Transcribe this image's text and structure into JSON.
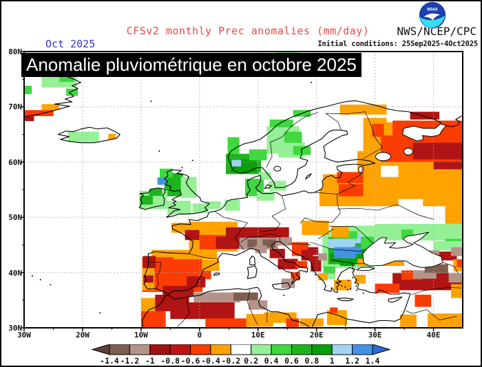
{
  "header": {
    "title": "CFSv2 monthly Prec anomalies (mm/day)",
    "title_color": "#ef4444",
    "date_label": "Oct 2025",
    "date_color": "#3333cc",
    "agency": "NWS/NCEP/CPC",
    "init_conditions": "Initial conditions: 25Sep2025-4Oct2025",
    "logo": "noaa-logo"
  },
  "banner": {
    "text": "Anomalie pluviométrique en octobre 2025",
    "bg": "#000000",
    "fg": "#ffffff"
  },
  "map": {
    "bounds": {
      "lon_min": -30,
      "lon_max": 45,
      "lat_min": 30,
      "lat_max": 80
    },
    "lat_ticks": [
      {
        "label": "80N",
        "v": 80
      },
      {
        "label": "70N",
        "v": 70
      },
      {
        "label": "60N",
        "v": 60
      },
      {
        "label": "50N",
        "v": 50
      },
      {
        "label": "40N",
        "v": 40
      },
      {
        "label": "30N",
        "v": 30
      }
    ],
    "lon_ticks": [
      {
        "label": "30W",
        "v": -30
      },
      {
        "label": "20W",
        "v": -20
      },
      {
        "label": "10W",
        "v": -10
      },
      {
        "label": "0",
        "v": 0
      },
      {
        "label": "10E",
        "v": 10
      },
      {
        "label": "20E",
        "v": 20
      },
      {
        "label": "30E",
        "v": 30
      },
      {
        "label": "40E",
        "v": 40
      }
    ],
    "grid_lats": [
      40,
      50,
      60,
      70
    ],
    "grid_lons": [
      -20,
      -10,
      0,
      10,
      20,
      30,
      40
    ],
    "palette": {
      "o": "#ffa300",
      "r": "#fa3c00",
      "d": "#b01414",
      "t": "#b4948a",
      "w": "#7e5e50",
      "g1": "#96f096",
      "g2": "#3fd83f",
      "g3": "#1fb41f",
      "g4": "#0a9e0a",
      "b1": "#a2d4f2",
      "b2": "#4492e2",
      "wh": "#ffffff"
    },
    "cells": [
      [
        -27,
        73.5,
        6,
        2.5,
        "g1"
      ],
      [
        -24,
        74.5,
        2.5,
        1.5,
        "g2"
      ],
      [
        -30,
        72.3,
        1.3,
        1.5,
        "g2"
      ],
      [
        -22.8,
        72,
        2,
        1.3,
        "g2"
      ],
      [
        -27,
        69.4,
        3,
        1.1,
        "o"
      ],
      [
        -30,
        68.3,
        5,
        1.1,
        "r"
      ],
      [
        -30,
        67.4,
        1.7,
        0.9,
        "d"
      ],
      [
        -22.5,
        63.6,
        5.3,
        1.9,
        "g1"
      ],
      [
        -15.6,
        64.1,
        1.3,
        1,
        "o"
      ],
      [
        13,
        79,
        4,
        1,
        "g1"
      ],
      [
        21,
        76.6,
        6,
        2.2,
        "g1"
      ],
      [
        21.5,
        77.3,
        3,
        1.4,
        "g2"
      ],
      [
        24,
        68.6,
        8,
        1.8,
        "o"
      ],
      [
        28,
        62,
        4,
        6,
        "o"
      ],
      [
        27,
        57.8,
        18,
        4.2,
        "o"
      ],
      [
        30,
        62,
        15,
        5.2,
        "o"
      ],
      [
        20.5,
        52,
        9.5,
        5.8,
        "o"
      ],
      [
        30,
        52,
        15,
        5.8,
        "o"
      ],
      [
        34,
        50,
        4.2,
        3.3,
        "wh"
      ],
      [
        31,
        57.3,
        3,
        2,
        "wh"
      ],
      [
        19.8,
        55.2,
        1.3,
        2.8,
        "wh"
      ],
      [
        42,
        48.8,
        3,
        3.2,
        "o"
      ],
      [
        33,
        64.8,
        12,
        2.7,
        "r"
      ],
      [
        31,
        60,
        14,
        4.8,
        "r"
      ],
      [
        29.5,
        64.6,
        2,
        2.3,
        "r"
      ],
      [
        36.5,
        60.5,
        8.5,
        3,
        "d"
      ],
      [
        40,
        58.7,
        5,
        1.4,
        "d"
      ],
      [
        36,
        67.7,
        5,
        1.4,
        "d"
      ],
      [
        23.5,
        56.2,
        4.5,
        2,
        "r"
      ],
      [
        23.8,
        53.8,
        4.2,
        2.2,
        "r"
      ],
      [
        11.5,
        61.5,
        5.5,
        5,
        "g1"
      ],
      [
        13.5,
        60.8,
        4.5,
        2.8,
        "g1"
      ],
      [
        14.5,
        63.5,
        3,
        2,
        "g2"
      ],
      [
        16,
        61.3,
        3,
        1.6,
        "g2"
      ],
      [
        12,
        66.3,
        4,
        1.4,
        "g2"
      ],
      [
        16,
        68.2,
        3,
        1.2,
        "g2"
      ],
      [
        4.5,
        57.8,
        6,
        3.7,
        "g3"
      ],
      [
        5.3,
        58.2,
        4.5,
        2.3,
        "g4"
      ],
      [
        5.5,
        59.2,
        1.6,
        1.2,
        "b1"
      ],
      [
        8.5,
        60.3,
        3,
        2,
        "g2"
      ],
      [
        4.8,
        61.5,
        2,
        3,
        "g2"
      ],
      [
        7.8,
        53.8,
        3.2,
        3.2,
        "g2"
      ],
      [
        9.8,
        53,
        3,
        1.6,
        "g1"
      ],
      [
        11.8,
        54.8,
        3,
        1.8,
        "g1"
      ],
      [
        10.2,
        56.8,
        2,
        1.4,
        "g1"
      ],
      [
        -6,
        53.8,
        3.2,
        4.2,
        "g3"
      ],
      [
        -3.2,
        53.5,
        2.7,
        3.8,
        "g1"
      ],
      [
        -7.2,
        55.9,
        1.6,
        1.3,
        "b2"
      ],
      [
        -6.8,
        57.2,
        2.2,
        1.6,
        "g2"
      ],
      [
        -5.5,
        50.5,
        4,
        2.5,
        "g1"
      ],
      [
        -1.2,
        50.8,
        2.7,
        1.7,
        "g1"
      ],
      [
        1,
        51.5,
        2.6,
        1.4,
        "g1"
      ],
      [
        4.3,
        51.2,
        2.6,
        2,
        "g1"
      ],
      [
        -10.3,
        51.5,
        4.8,
        3.3,
        "g1"
      ],
      [
        -10.2,
        52.3,
        2.2,
        1.6,
        "g3"
      ],
      [
        -8.6,
        53.9,
        2.2,
        1.3,
        "g3"
      ],
      [
        25,
        46.3,
        5,
        2.2,
        "g1"
      ],
      [
        30,
        45.8,
        15,
        3,
        "g1"
      ],
      [
        34.5,
        46.2,
        2,
        1.6,
        "g2"
      ],
      [
        42,
        44.6,
        3,
        1.5,
        "g2"
      ],
      [
        40,
        44,
        5,
        1.7,
        "g1"
      ],
      [
        21,
        40.8,
        9,
        6.9,
        "g1"
      ],
      [
        22,
        41.5,
        6.5,
        4.9,
        "g3"
      ],
      [
        22.3,
        41.9,
        2.2,
        1.6,
        "g4"
      ],
      [
        26.3,
        41.9,
        2.8,
        2.3,
        "g4"
      ],
      [
        24,
        41.2,
        2.6,
        1.3,
        "g4"
      ],
      [
        22,
        44.4,
        4.6,
        1.7,
        "b1"
      ],
      [
        25.2,
        45.3,
        2.4,
        1.8,
        "b1"
      ],
      [
        23,
        42.6,
        3.8,
        2,
        "b2"
      ],
      [
        26.2,
        43.4,
        1.5,
        1.3,
        "b2"
      ],
      [
        23,
        46.1,
        4,
        1.4,
        "g2"
      ],
      [
        27.6,
        44.3,
        2.2,
        2.2,
        "g2"
      ],
      [
        21.2,
        39.5,
        2,
        1.6,
        "g2"
      ],
      [
        20.6,
        38.8,
        2.6,
        1,
        "g1"
      ],
      [
        17.5,
        46.8,
        4.6,
        2.6,
        "o"
      ],
      [
        22.5,
        46.4,
        3,
        2,
        "o"
      ],
      [
        -1.8,
        43.8,
        8.3,
        5.4,
        "o"
      ],
      [
        -4.8,
        47.2,
        3.5,
        1.8,
        "o"
      ],
      [
        -2.5,
        45.9,
        2.5,
        1.8,
        "d"
      ],
      [
        0,
        44.2,
        6.5,
        2.6,
        "r"
      ],
      [
        2.8,
        44.3,
        4,
        2.2,
        "d"
      ],
      [
        4.5,
        45,
        10.8,
        3.2,
        "d"
      ],
      [
        6.8,
        44.2,
        6.6,
        2.1,
        "t"
      ],
      [
        8.2,
        44.6,
        1.6,
        1.4,
        "w"
      ],
      [
        10.8,
        44.5,
        2.2,
        1.5,
        "w"
      ],
      [
        13.2,
        44.9,
        2.6,
        1.5,
        "t"
      ],
      [
        9.5,
        43.5,
        2,
        1.4,
        "t"
      ],
      [
        12,
        42.6,
        2.6,
        1.7,
        "d"
      ],
      [
        13.4,
        40.6,
        3.4,
        1.9,
        "d"
      ],
      [
        15.6,
        38.6,
        1.6,
        1.5,
        "r"
      ],
      [
        14,
        37.2,
        2.3,
        1.7,
        "t"
      ],
      [
        16.4,
        40.8,
        2,
        1.3,
        "r"
      ],
      [
        15.8,
        43,
        2.8,
        2.5,
        "r"
      ],
      [
        17.4,
        42.2,
        2,
        1.9,
        "d"
      ],
      [
        19,
        40.2,
        1.8,
        2.8,
        "d"
      ],
      [
        20.3,
        42.2,
        1.5,
        1.3,
        "t"
      ],
      [
        18.5,
        43.2,
        1.8,
        1.4,
        "d"
      ],
      [
        20.3,
        38.6,
        1.6,
        1.3,
        "o"
      ],
      [
        23,
        36.8,
        3,
        1.9,
        "o"
      ],
      [
        26.6,
        38,
        1.8,
        1.6,
        "o"
      ],
      [
        -9.8,
        36.5,
        10.3,
        6.3,
        "r"
      ],
      [
        0.5,
        38.8,
        1.5,
        1.7,
        "r"
      ],
      [
        -8.2,
        42.8,
        4.5,
        1.3,
        "o"
      ],
      [
        -4.5,
        42.4,
        7.5,
        1.7,
        "o"
      ],
      [
        -9.8,
        36.8,
        2.1,
        4.4,
        "o"
      ],
      [
        -9.6,
        38.2,
        1.7,
        1.3,
        "d"
      ],
      [
        -9.7,
        40.8,
        2.2,
        2.2,
        "d"
      ],
      [
        -6.3,
        35.7,
        5.3,
        1.9,
        "d"
      ],
      [
        -2.2,
        37.3,
        3.2,
        2,
        "d"
      ],
      [
        0.4,
        40.3,
        3,
        2,
        "o"
      ],
      [
        -10,
        32.8,
        3.4,
        2.6,
        "o"
      ],
      [
        -7.6,
        33,
        5.8,
        3,
        "d"
      ],
      [
        -10,
        30,
        4.2,
        3,
        "r"
      ],
      [
        -5,
        31.6,
        11,
        3,
        "d"
      ],
      [
        -1,
        34.6,
        8,
        1.8,
        "t"
      ],
      [
        5.8,
        34.9,
        4.2,
        1.5,
        "w"
      ],
      [
        1,
        30,
        7,
        1.7,
        "r"
      ],
      [
        8.4,
        33.3,
        3.2,
        1.7,
        "t"
      ],
      [
        8,
        30.2,
        4.6,
        2.3,
        "o"
      ],
      [
        11,
        30.9,
        5.6,
        1.9,
        "o"
      ],
      [
        14.8,
        30,
        2.2,
        1.7,
        "r"
      ],
      [
        17.2,
        30.2,
        4,
        1.5,
        "o"
      ],
      [
        21.8,
        30.5,
        3.4,
        2.7,
        "o"
      ],
      [
        22.3,
        32.7,
        1.3,
        1,
        "r"
      ],
      [
        27,
        41.2,
        8,
        1.3,
        "o"
      ],
      [
        33,
        36.8,
        12,
        3.1,
        "d"
      ],
      [
        30,
        36.3,
        4.2,
        1.7,
        "r"
      ],
      [
        34.5,
        38.7,
        3.6,
        1.7,
        "r"
      ],
      [
        36.5,
        38.9,
        4,
        1.5,
        "t"
      ],
      [
        38.5,
        39.9,
        4,
        1.6,
        "w"
      ],
      [
        42.6,
        38.2,
        2.4,
        1.7,
        "t"
      ],
      [
        38,
        42.4,
        3,
        1.6,
        "t"
      ],
      [
        41,
        42.2,
        3,
        1.6,
        "d"
      ],
      [
        43,
        43,
        2,
        1.6,
        "t"
      ],
      [
        36.8,
        33.8,
        2.8,
        2.2,
        "r"
      ],
      [
        39,
        30,
        6,
        2.6,
        "o"
      ],
      [
        34.3,
        30,
        2.8,
        2.4,
        "o"
      ],
      [
        43,
        35.4,
        2,
        2.5,
        "o"
      ],
      [
        43.4,
        40.2,
        1.6,
        2.2,
        "o"
      ],
      [
        44,
        41,
        1,
        1.4,
        "r"
      ]
    ]
  },
  "colorbar": {
    "labels": [
      "-1.4",
      "-1.2",
      "-1",
      "-0.8",
      "-0.6",
      "-0.4",
      "-0.2",
      "0.2",
      "0.4",
      "0.6",
      "0.8",
      "1",
      "1.2",
      "1.4"
    ],
    "segments": [
      "#7e5e50",
      "#b4948a",
      "#a31212",
      "#c01414",
      "#fa3c00",
      "#ffa300",
      "#ffffff",
      "#96f096",
      "#3fd83f",
      "#1fb41f",
      "#0a9e0a",
      "#a2d4f2",
      "#4492e2"
    ],
    "arrow_left": "#5e4037",
    "arrow_right": "#2a6ad8"
  }
}
